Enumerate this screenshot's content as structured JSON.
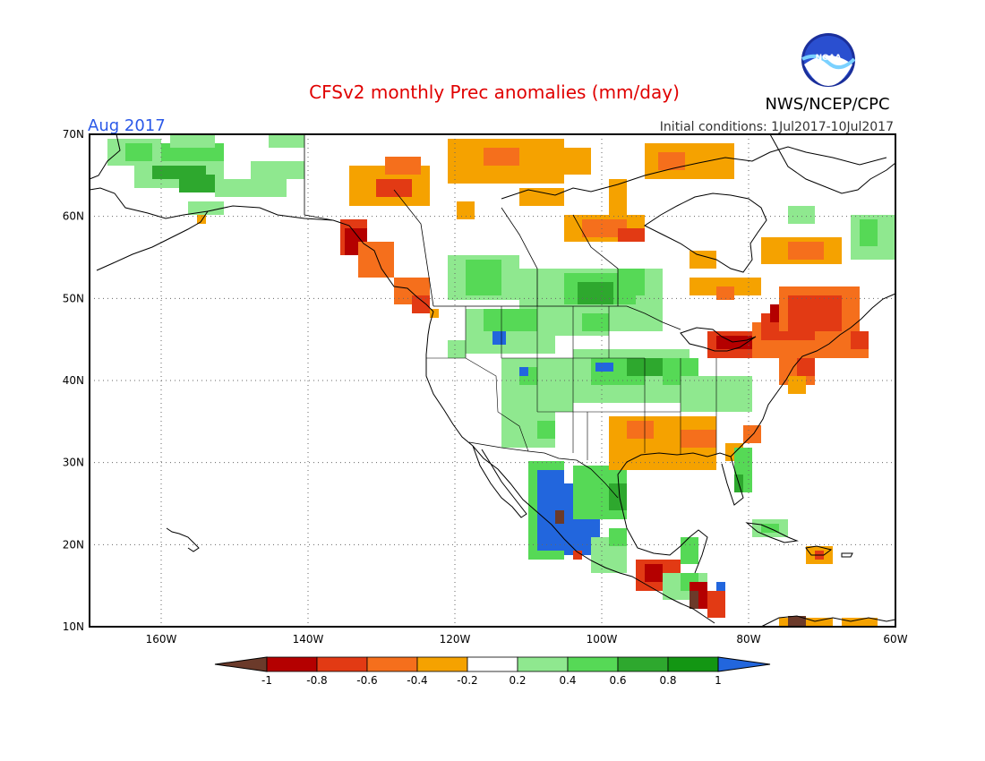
{
  "title": "CFSv2 monthly Prec anomalies (mm/day)",
  "agency": "NWS/NCEP/CPC",
  "logo_text": "NOAA",
  "period": "Aug 2017",
  "init": "Initial conditions:  1Jul2017-10Jul2017",
  "colors": {
    "title": "#e00000",
    "period": "#2b59e8",
    "neg_extreme": "#6b3a2a",
    "neg_08": "#b40000",
    "neg_06": "#e23a14",
    "neg_04": "#f56f1c",
    "neg_02": "#f5a200",
    "neutral": "#ffffff",
    "pos_02": "#8fe88f",
    "pos_04": "#56d956",
    "pos_06": "#2ea82e",
    "pos_08": "#139613",
    "pos_extreme": "#2266dd"
  },
  "lat_labels": [
    "70N",
    "60N",
    "50N",
    "40N",
    "30N",
    "20N",
    "10N"
  ],
  "lon_labels": [
    "160W",
    "140W",
    "120W",
    "100W",
    "80W",
    "60W"
  ],
  "colorbar": {
    "labels": [
      "-1",
      "-0.8",
      "-0.6",
      "-0.4",
      "-0.2",
      "0.2",
      "0.4",
      "0.6",
      "0.8",
      "1"
    ],
    "colors": [
      "#b40000",
      "#e23a14",
      "#f56f1c",
      "#f5a200",
      "#ffffff",
      "#8fe88f",
      "#56d956",
      "#2ea82e",
      "#139613"
    ]
  }
}
